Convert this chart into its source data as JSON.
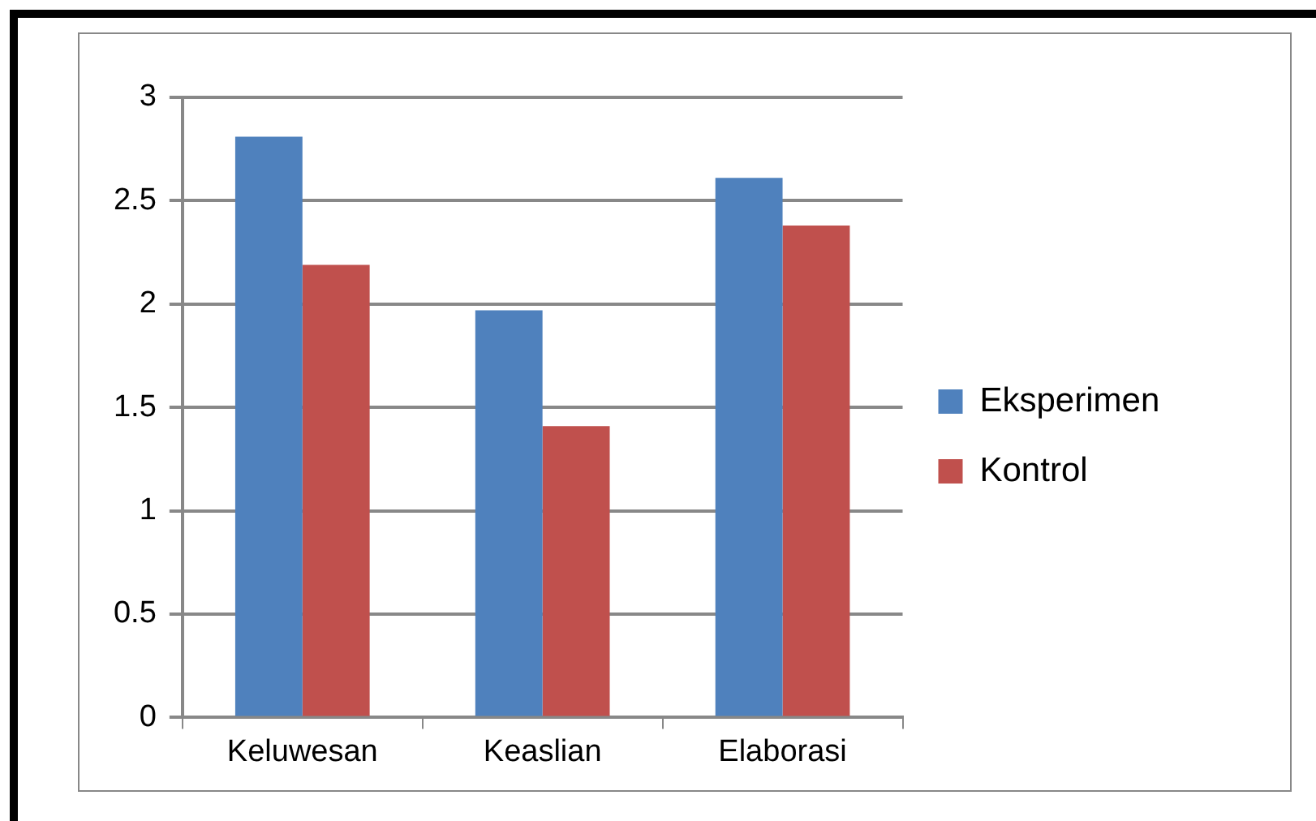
{
  "chart_data": {
    "type": "bar",
    "categories": [
      "Keluwesan",
      "Keaslian",
      "Elaborasi"
    ],
    "series": [
      {
        "name": "Eksperimen",
        "color": "#4f81bd",
        "values": [
          2.81,
          1.97,
          2.61
        ]
      },
      {
        "name": "Kontrol",
        "color": "#c0504d",
        "values": [
          2.19,
          1.41,
          2.38
        ]
      }
    ],
    "ylim": [
      0,
      3
    ],
    "yticks": [
      0,
      0.5,
      1,
      1.5,
      2,
      2.5,
      3
    ],
    "grid": "y",
    "legend": "right"
  }
}
